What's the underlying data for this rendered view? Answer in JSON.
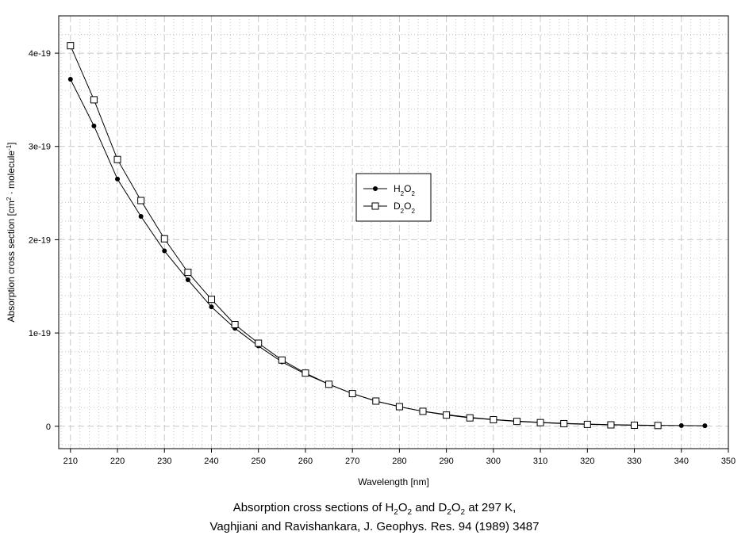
{
  "chart_data": {
    "type": "line",
    "xlabel": "Wavelength [nm]",
    "ylabel_parts": [
      "Absorption cross section [cm",
      "2",
      " · molecule",
      "-1",
      "]"
    ],
    "xlim": [
      207.5,
      350
    ],
    "ylim": [
      -2.4e-20,
      4.4e-19
    ],
    "x_ticks": [
      210,
      220,
      230,
      240,
      250,
      260,
      270,
      280,
      290,
      300,
      310,
      320,
      330,
      340,
      350
    ],
    "x_tick_labels": [
      "210",
      "220",
      "230",
      "240",
      "250",
      "260",
      "270",
      "280",
      "290",
      "300",
      "310",
      "320",
      "330",
      "340",
      "350"
    ],
    "y_ticks": [
      0,
      1e-19,
      2e-19,
      3e-19,
      4e-19
    ],
    "y_tick_labels": [
      "0",
      "1e-19",
      "2e-19",
      "3e-19",
      "4e-19"
    ],
    "grid": true,
    "legend_position": "center",
    "series": [
      {
        "name_parts": [
          "H",
          "2",
          "O",
          "2"
        ],
        "marker": "filled-circle",
        "x": [
          210,
          215,
          220,
          225,
          230,
          235,
          240,
          245,
          250,
          255,
          260,
          265,
          270,
          275,
          280,
          285,
          290,
          295,
          300,
          305,
          310,
          315,
          320,
          325,
          330,
          335,
          340,
          345
        ],
        "y": [
          3.72e-19,
          3.22e-19,
          2.65e-19,
          2.25e-19,
          1.88e-19,
          1.57e-19,
          1.28e-19,
          1.05e-19,
          8.6e-20,
          6.9e-20,
          5.6e-20,
          4.5e-20,
          3.5e-20,
          2.7e-20,
          2.1e-20,
          1.6e-20,
          1.25e-20,
          9.5e-21,
          7.2e-21,
          5.5e-21,
          4.2e-21,
          3.1e-21,
          2.3e-21,
          1.7e-21,
          1.3e-21,
          1e-21,
          7e-22,
          5e-22
        ]
      },
      {
        "name_parts": [
          "D",
          "2",
          "O",
          "2"
        ],
        "marker": "open-square",
        "x": [
          210,
          215,
          220,
          225,
          230,
          235,
          240,
          245,
          250,
          255,
          260,
          265,
          270,
          275,
          280,
          285,
          290,
          295,
          300,
          305,
          310,
          315,
          320,
          325,
          330,
          335
        ],
        "y": [
          4.08e-19,
          3.5e-19,
          2.86e-19,
          2.42e-19,
          2.01e-19,
          1.65e-19,
          1.36e-19,
          1.09e-19,
          8.9e-20,
          7.1e-20,
          5.7e-20,
          4.5e-20,
          3.5e-20,
          2.7e-20,
          2.1e-20,
          1.6e-20,
          1.2e-20,
          9e-21,
          7e-21,
          5.2e-21,
          3.9e-21,
          2.8e-21,
          2e-21,
          1.5e-21,
          1.1e-21,
          8e-22
        ]
      }
    ],
    "caption_line1_parts": [
      "Absorption cross sections of H",
      "2",
      "O",
      "2",
      " and D",
      "2",
      "O",
      "2",
      " at 297 K,"
    ],
    "caption_line2": "Vaghjiani and Ravishankara, J. Geophys. Res. 94 (1989) 3487"
  },
  "colors": {
    "line": "#000000",
    "grid_major": "#c8c8c8",
    "grid_minor": "#c8c8c8",
    "frame": "#000000"
  }
}
